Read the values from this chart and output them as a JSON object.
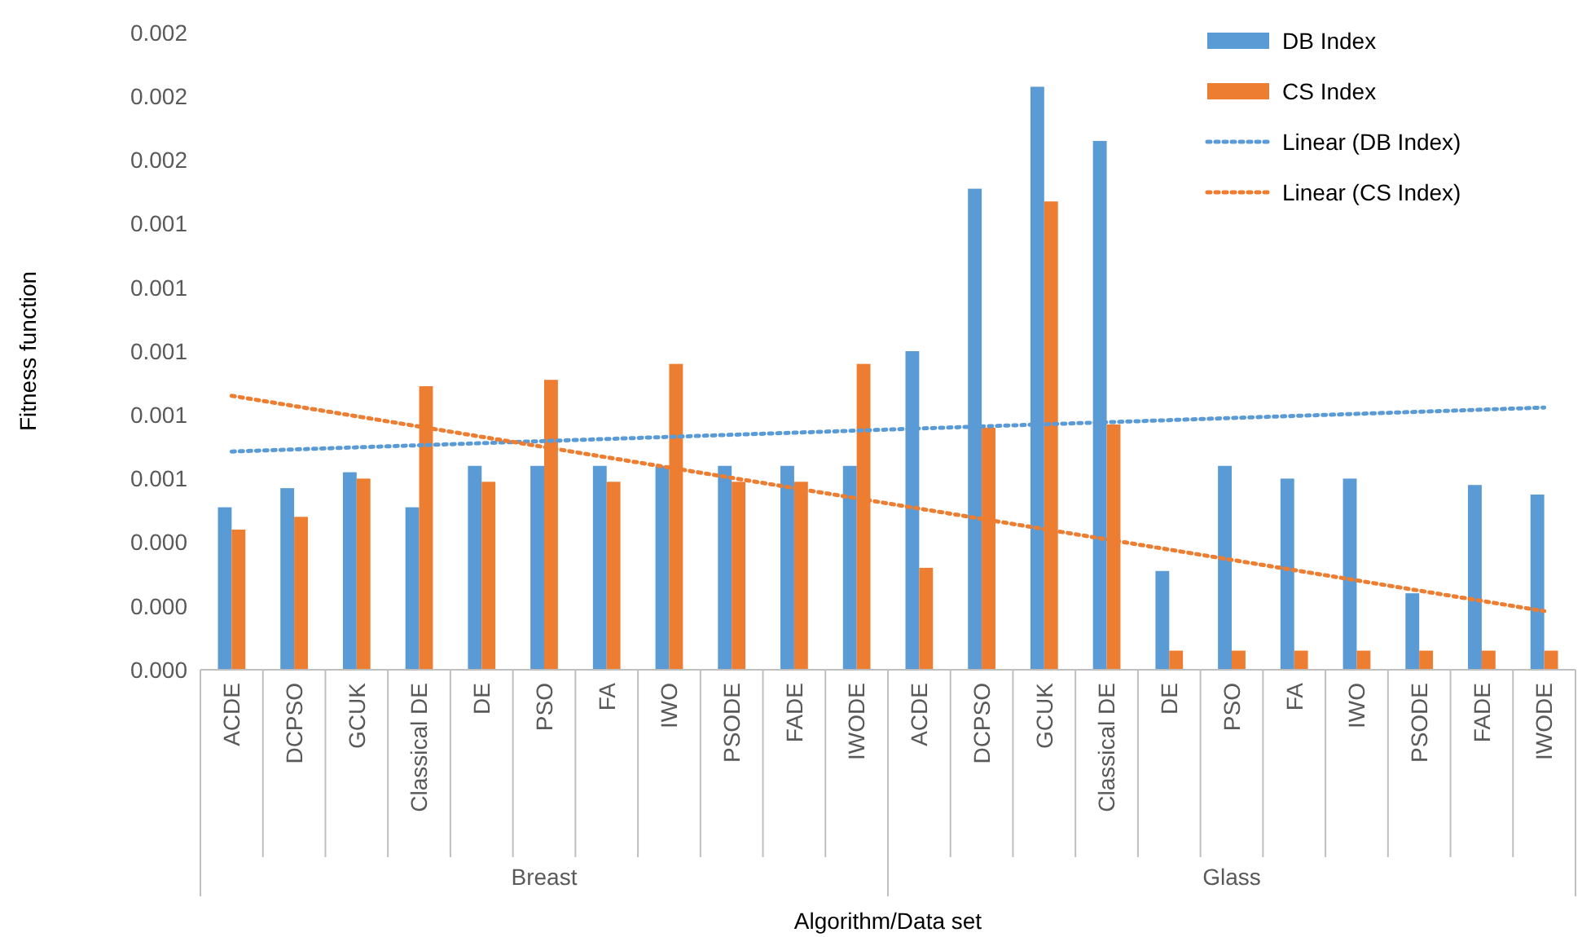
{
  "chart_data": {
    "type": "bar",
    "xlabel": "Algorithm/Data set",
    "ylabel": "Fitness function",
    "categories": [
      "ACDE",
      "DCPSO",
      "GCUK",
      "Classical DE",
      "DE",
      "PSO",
      "FA",
      "IWO",
      "PSODE",
      "FADE",
      "IWODE",
      "ACDE",
      "DCPSO",
      "GCUK",
      "Classical DE",
      "DE",
      "PSO",
      "FA",
      "IWO",
      "PSODE",
      "FADE",
      "IWODE"
    ],
    "annotations": [
      "Breast",
      "Glass"
    ],
    "ylim": [
      0,
      0.002
    ],
    "yticks": [
      {
        "value": 0,
        "label": "0.000"
      },
      {
        "value": 0.0002,
        "label": "0.000"
      },
      {
        "value": 0.0004,
        "label": "0.000"
      },
      {
        "value": 0.0006,
        "label": "0.001"
      },
      {
        "value": 0.0008,
        "label": "0.001"
      },
      {
        "value": 0.001,
        "label": "0.001"
      },
      {
        "value": 0.0012,
        "label": "0.001"
      },
      {
        "value": 0.0014,
        "label": "0.001"
      },
      {
        "value": 0.0016,
        "label": "0.002"
      },
      {
        "value": 0.0018,
        "label": "0.002"
      },
      {
        "value": 0.002,
        "label": "0.002"
      }
    ],
    "grid": false,
    "legend": "top right",
    "series": [
      {
        "name": "DB Index",
        "color": "#5b9bd5",
        "values": [
          0.00051,
          0.00057,
          0.00062,
          0.00051,
          0.00064,
          0.00064,
          0.00064,
          0.00064,
          0.00064,
          0.00064,
          0.00064,
          0.001,
          0.00151,
          0.00183,
          0.00166,
          0.00031,
          0.00064,
          0.0006,
          0.0006,
          0.00024,
          0.00058,
          0.00055
        ]
      },
      {
        "name": "CS Index",
        "color": "#ed7d31",
        "values": [
          0.00044,
          0.00048,
          0.0006,
          0.00089,
          0.00059,
          0.00091,
          0.00059,
          0.00096,
          0.00059,
          0.00059,
          0.00096,
          0.00032,
          0.00076,
          0.00147,
          0.00077,
          6e-05,
          6e-05,
          6e-05,
          6e-05,
          6e-05,
          6e-05,
          6e-05
        ]
      },
      {
        "name": "Linear (DB Index)",
        "type": "line",
        "line_style": "dotted",
        "color": "#5b9bd5",
        "values": [
          0.000685,
          null,
          null,
          null,
          null,
          null,
          null,
          null,
          null,
          null,
          null,
          null,
          null,
          null,
          null,
          null,
          null,
          null,
          null,
          null,
          null,
          0.000823
        ]
      },
      {
        "name": "Linear (CS Index)",
        "type": "line",
        "line_style": "dotted",
        "color": "#ed7d31",
        "values": [
          0.00086,
          null,
          null,
          null,
          null,
          null,
          null,
          null,
          null,
          null,
          null,
          null,
          null,
          null,
          null,
          null,
          null,
          null,
          null,
          null,
          null,
          0.000184
        ]
      }
    ]
  }
}
